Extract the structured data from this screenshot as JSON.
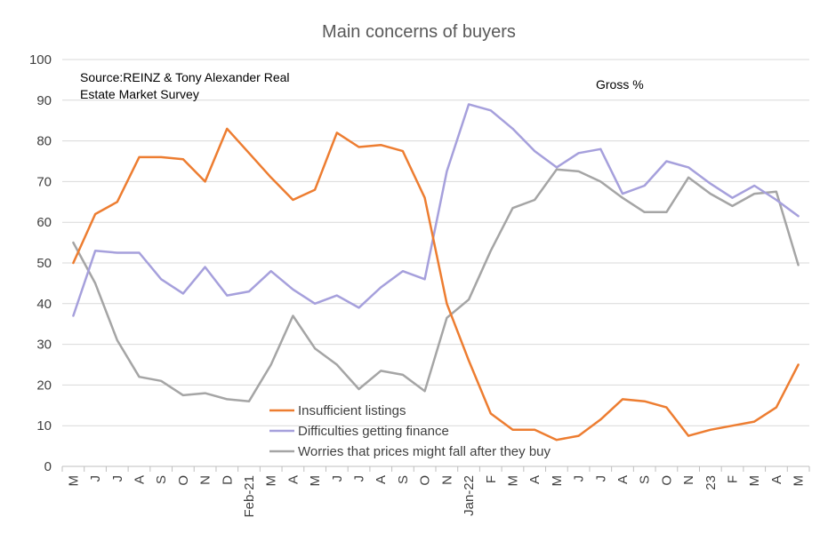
{
  "chart_data": {
    "type": "line",
    "title": "Main concerns of buyers",
    "source_note": [
      "Source:REINZ & Tony Alexander Real",
      "Estate Market Survey"
    ],
    "measure_note": "Gross %",
    "ylim": [
      0,
      100
    ],
    "yticks": [
      0,
      10,
      20,
      30,
      40,
      50,
      60,
      70,
      80,
      90,
      100
    ],
    "grid": true,
    "legend_position": "bottom-center",
    "categories": [
      "M",
      "J",
      "J",
      "A",
      "S",
      "O",
      "N",
      "D",
      "Feb-21",
      "M",
      "A",
      "M",
      "J",
      "J",
      "A",
      "S",
      "O",
      "N",
      "Jan-22",
      "F",
      "M",
      "A",
      "M",
      "J",
      "J",
      "A",
      "S",
      "O",
      "N",
      "23",
      "F",
      "M",
      "A",
      "M"
    ],
    "series": [
      {
        "name": "Insufficient listings",
        "color": "#ED7D31",
        "values": [
          50,
          62,
          65,
          76,
          76,
          75.5,
          70,
          83,
          77,
          71,
          65.5,
          68,
          82,
          78.5,
          79,
          77.5,
          66,
          40,
          26,
          13,
          9,
          9,
          6.5,
          7.5,
          11.5,
          16.5,
          16,
          14.5,
          7.5,
          9,
          10,
          11,
          14.5,
          25
        ]
      },
      {
        "name": "Difficulties getting finance",
        "color": "#A6A0DC",
        "values": [
          37,
          53,
          52.5,
          52.5,
          46,
          42.5,
          49,
          42,
          43,
          48,
          43.5,
          40,
          42,
          39,
          44,
          48,
          46,
          72.5,
          89,
          87.5,
          83,
          77.5,
          73.5,
          77,
          78,
          67,
          69,
          75,
          73.5,
          69.5,
          66,
          69,
          65.5,
          61.5
        ]
      },
      {
        "name": "Worries that prices might fall after they buy",
        "color": "#A5A5A5",
        "values": [
          55,
          45,
          31,
          22,
          21,
          17.5,
          18,
          16.5,
          16,
          25,
          37,
          29,
          25,
          19,
          23.5,
          22.5,
          18.5,
          36.5,
          41,
          53,
          63.5,
          65.5,
          73,
          72.5,
          70,
          66,
          62.5,
          62.5,
          71,
          67,
          64,
          67,
          67.5,
          49.5
        ]
      }
    ]
  }
}
